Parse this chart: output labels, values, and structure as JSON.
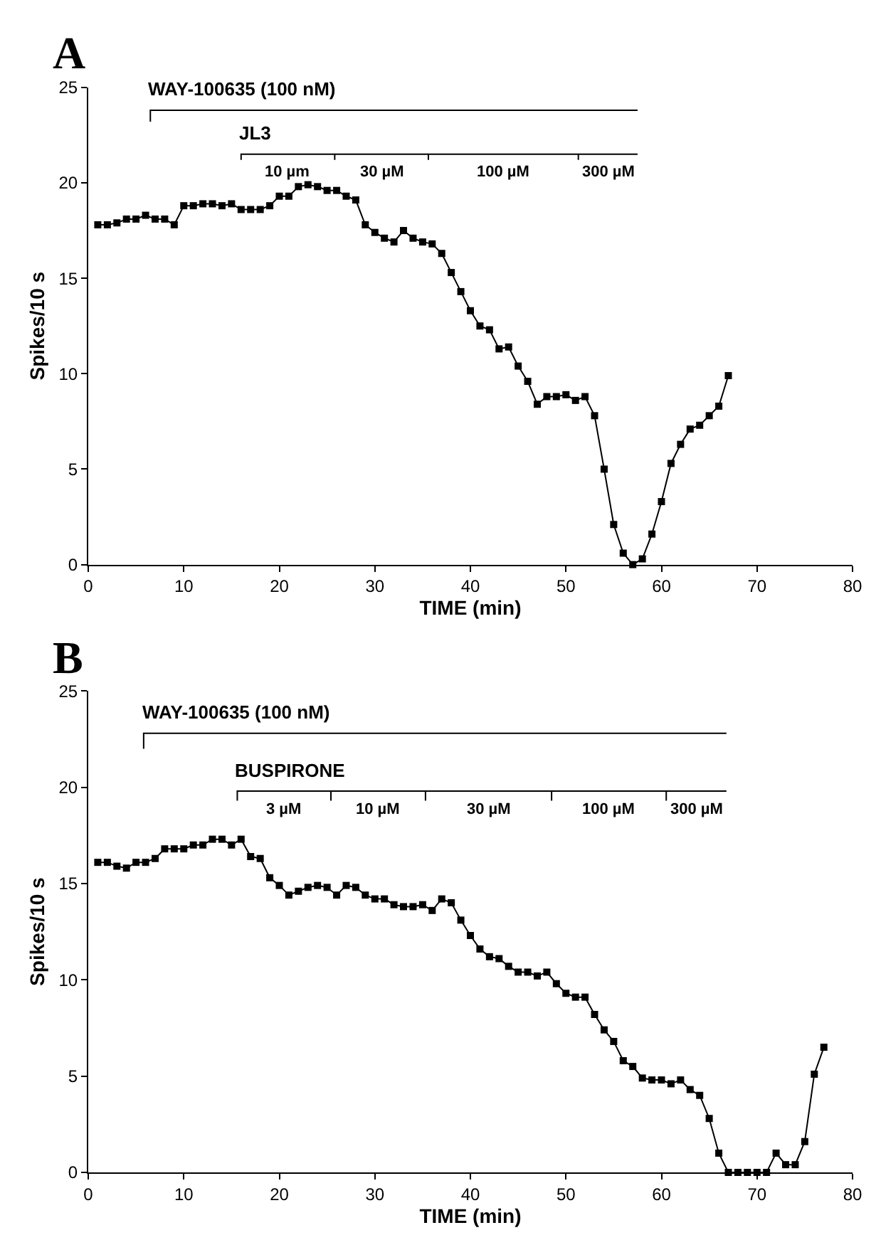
{
  "chart_data": [
    {
      "type": "line",
      "title": "A",
      "xlabel": "TIME (min)",
      "ylabel": "Spikes/10 s",
      "marker": "square",
      "line_style": "solid",
      "legend": false,
      "x": [
        1,
        2,
        3,
        4,
        5,
        6,
        7,
        8,
        9,
        10,
        11,
        12,
        13,
        14,
        15,
        16,
        17,
        18,
        19,
        20,
        21,
        22,
        23,
        24,
        25,
        26,
        27,
        28,
        29,
        30,
        31,
        32,
        33,
        34,
        35,
        36,
        37,
        38,
        39,
        40,
        41,
        42,
        43,
        44,
        45,
        46,
        47,
        48,
        49,
        50,
        51,
        52,
        53,
        54,
        55,
        56,
        57,
        58,
        59,
        60,
        61,
        62,
        63,
        64,
        65,
        66,
        67
      ],
      "series": [
        {
          "color": "#000000",
          "values": [
            17.8,
            17.8,
            17.9,
            18.1,
            18.1,
            18.3,
            18.1,
            18.1,
            17.8,
            18.8,
            18.8,
            18.9,
            18.9,
            18.8,
            18.9,
            18.6,
            18.6,
            18.6,
            18.8,
            19.3,
            19.3,
            19.8,
            19.9,
            19.8,
            19.6,
            19.6,
            19.3,
            19.1,
            17.8,
            17.4,
            17.1,
            16.9,
            17.5,
            17.1,
            16.9,
            16.8,
            16.3,
            15.3,
            14.3,
            13.3,
            12.5,
            12.3,
            11.3,
            11.4,
            10.4,
            9.6,
            8.4,
            8.8,
            8.8,
            8.9,
            8.6,
            8.8,
            7.8,
            5.0,
            2.1,
            0.6,
            0,
            0.3,
            1.6,
            3.3,
            5.3,
            6.3,
            7.1,
            7.3,
            7.8,
            8.3,
            9.9
          ]
        },
        {
          "name": "WAY-100635 (100 nM)",
          "color": "#000000",
          "marker": "none",
          "x": [
            6.5,
            6.5,
            57.5
          ],
          "values": [
            23.2,
            23.8,
            23.8
          ]
        },
        {
          "name": "JL3",
          "color": "#000000",
          "marker": "none",
          "x": [
            16,
            16,
            25.8,
            25.8,
            25.8,
            35.6,
            35.6,
            35.6,
            51.3,
            51.3,
            51.3,
            57.5
          ],
          "values": [
            21.2,
            21.5,
            21.5,
            21.2,
            21.5,
            21.5,
            21.2,
            21.5,
            21.5,
            21.2,
            21.5,
            21.5
          ]
        }
      ],
      "xlim": [
        0,
        80
      ],
      "xticks": [
        0,
        10,
        20,
        30,
        40,
        50,
        60,
        70,
        80
      ],
      "ylim": [
        0,
        25
      ],
      "yticks": [
        0,
        5,
        10,
        15,
        20,
        25
      ],
      "annotations": [
        "10 µm",
        "30 µM",
        "100 µM",
        "300 µM"
      ]
    },
    {
      "type": "line",
      "title": "B",
      "xlabel": "TIME (min)",
      "ylabel": "Spikes/10 s",
      "marker": "square",
      "line_style": "solid",
      "legend": false,
      "x": [
        1,
        2,
        3,
        4,
        5,
        6,
        7,
        8,
        9,
        10,
        11,
        12,
        13,
        14,
        15,
        16,
        17,
        18,
        19,
        20,
        21,
        22,
        23,
        24,
        25,
        26,
        27,
        28,
        29,
        30,
        31,
        32,
        33,
        34,
        35,
        36,
        37,
        38,
        39,
        40,
        41,
        42,
        43,
        44,
        45,
        46,
        47,
        48,
        49,
        50,
        51,
        52,
        53,
        54,
        55,
        56,
        57,
        58,
        59,
        60,
        61,
        62,
        63,
        64,
        65,
        66,
        67,
        68,
        69,
        70,
        71,
        72,
        73,
        74,
        75,
        76,
        77
      ],
      "series": [
        {
          "color": "#000000",
          "values": [
            16.1,
            16.1,
            15.9,
            15.8,
            16.1,
            16.1,
            16.3,
            16.8,
            16.8,
            16.8,
            17.0,
            17.0,
            17.3,
            17.3,
            17.0,
            17.3,
            16.4,
            16.3,
            15.3,
            14.9,
            14.4,
            14.6,
            14.8,
            14.9,
            14.8,
            14.4,
            14.9,
            14.8,
            14.4,
            14.2,
            14.2,
            13.9,
            13.8,
            13.8,
            13.9,
            13.6,
            14.2,
            14.0,
            13.1,
            12.3,
            11.6,
            11.2,
            11.1,
            10.7,
            10.4,
            10.4,
            10.2,
            10.4,
            9.8,
            9.3,
            9.1,
            9.1,
            8.2,
            7.4,
            6.8,
            5.8,
            5.5,
            4.9,
            4.8,
            4.8,
            4.6,
            4.8,
            4.3,
            4.0,
            2.8,
            1.0,
            0,
            0,
            0,
            0,
            0,
            1.0,
            0.4,
            0.4,
            1.6,
            5.1,
            6.5
          ]
        },
        {
          "name": "WAY-100635 (100 nM)",
          "color": "#000000",
          "marker": "none",
          "x": [
            5.8,
            5.8,
            66.8
          ],
          "values": [
            22.0,
            22.8,
            22.8
          ]
        },
        {
          "name": "BUSPIRONE",
          "color": "#000000",
          "marker": "none",
          "x": [
            15.6,
            15.6,
            25.4,
            25.4,
            25.4,
            35.3,
            35.3,
            35.3,
            48.5,
            48.5,
            48.5,
            60.5,
            60.5,
            60.5,
            66.8
          ],
          "values": [
            19.3,
            19.8,
            19.8,
            19.3,
            19.8,
            19.8,
            19.3,
            19.8,
            19.8,
            19.3,
            19.8,
            19.8,
            19.3,
            19.8,
            19.8
          ]
        }
      ],
      "xlim": [
        0,
        80
      ],
      "xticks": [
        0,
        10,
        20,
        30,
        40,
        50,
        60,
        70,
        80
      ],
      "ylim": [
        0,
        25
      ],
      "yticks": [
        0,
        5,
        10,
        15,
        20,
        25
      ],
      "annotations": [
        "3 µM",
        "10 µM",
        "30 µM",
        "100 µM",
        "300 µM"
      ]
    }
  ]
}
